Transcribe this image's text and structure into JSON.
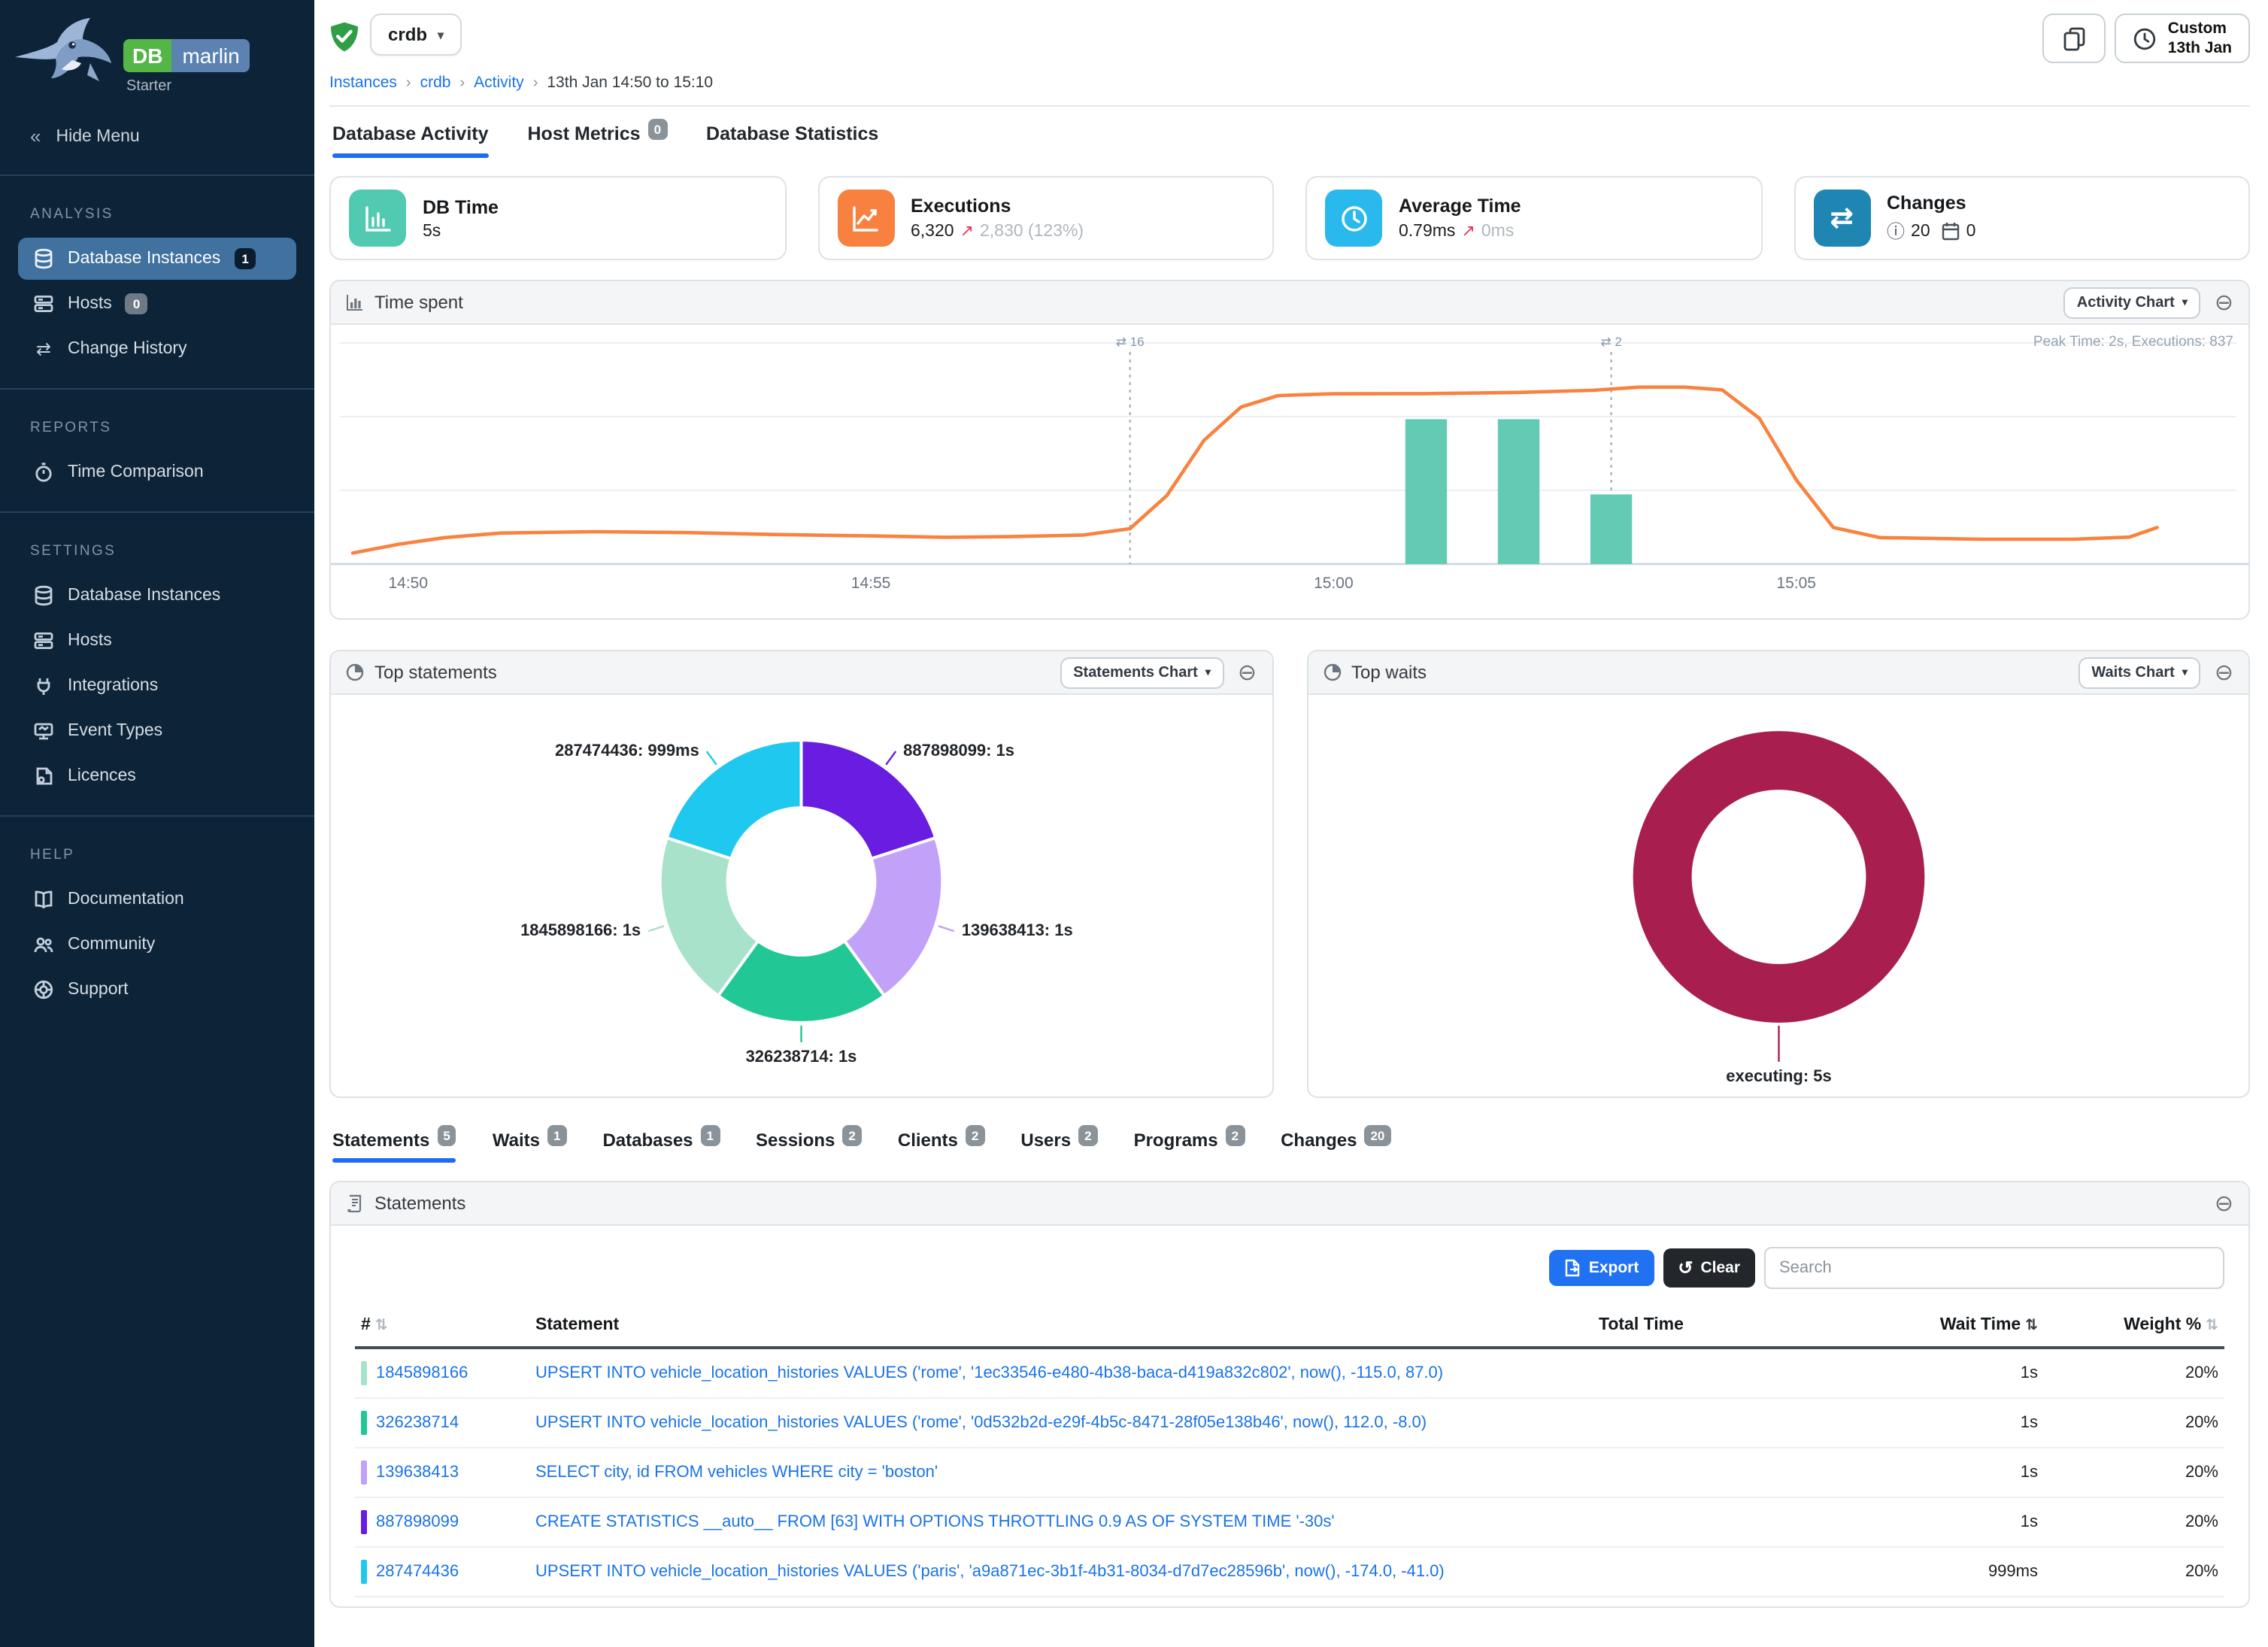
{
  "brand": {
    "db": "DB",
    "marlin": "marlin",
    "edition": "Starter"
  },
  "sidebar": {
    "hide_menu": "Hide Menu",
    "sections": [
      {
        "title": "ANALYSIS",
        "items": [
          {
            "label": "Database Instances",
            "badge": "1"
          },
          {
            "label": "Hosts",
            "badge": "0"
          },
          {
            "label": "Change History"
          }
        ]
      },
      {
        "title": "REPORTS",
        "items": [
          {
            "label": "Time Comparison"
          }
        ]
      },
      {
        "title": "SETTINGS",
        "items": [
          {
            "label": "Database Instances"
          },
          {
            "label": "Hosts"
          },
          {
            "label": "Integrations"
          },
          {
            "label": "Event Types"
          },
          {
            "label": "Licences"
          }
        ]
      },
      {
        "title": "HELP",
        "items": [
          {
            "label": "Documentation"
          },
          {
            "label": "Community"
          },
          {
            "label": "Support"
          }
        ]
      }
    ]
  },
  "topbar": {
    "instance": "crdb",
    "time_button": {
      "line1": "Custom",
      "line2": "13th Jan"
    }
  },
  "breadcrumbs": {
    "sep": "›",
    "items": [
      "Instances",
      "crdb",
      "Activity",
      "13th Jan 14:50 to 15:10"
    ]
  },
  "page_tabs": {
    "t0": {
      "label": "Database Activity"
    },
    "t1": {
      "label": "Host Metrics",
      "badge": "0"
    },
    "t2": {
      "label": "Database Statistics"
    }
  },
  "kpis": {
    "db_time": {
      "title": "DB Time",
      "value": "5s",
      "color": "#52c9b1"
    },
    "executions": {
      "title": "Executions",
      "value": "6,320",
      "arrow": "↗",
      "delta": "2,830 (123%)",
      "color": "#f8813f"
    },
    "avg_time": {
      "title": "Average Time",
      "value": "0.79ms",
      "arrow": "↗",
      "delta": "0ms",
      "color": "#2ab9ec"
    },
    "changes": {
      "title": "Changes",
      "info_icon": "ⓘ",
      "info_count": "20",
      "event_count": "0",
      "color": "#1f86b4",
      "swap_glyph": "⇄"
    }
  },
  "panels": {
    "time_spent": {
      "title": "Time spent",
      "button": "Activity Chart",
      "note": "Peak Time: 2s, Executions: 837"
    },
    "top_statements": {
      "title": "Top statements",
      "button": "Statements Chart"
    },
    "top_waits": {
      "title": "Top waits",
      "button": "Waits Chart"
    },
    "statements": {
      "title": "Statements",
      "export_label": "Export",
      "clear_label": "Clear",
      "clear_icon": "↺",
      "search_placeholder": "Search"
    }
  },
  "detail_tabs": {
    "t0": {
      "label": "Statements",
      "badge": "5"
    },
    "t1": {
      "label": "Waits",
      "badge": "1"
    },
    "t2": {
      "label": "Databases",
      "badge": "1"
    },
    "t3": {
      "label": "Sessions",
      "badge": "2"
    },
    "t4": {
      "label": "Clients",
      "badge": "2"
    },
    "t5": {
      "label": "Users",
      "badge": "2"
    },
    "t6": {
      "label": "Programs",
      "badge": "2"
    },
    "t7": {
      "label": "Changes",
      "badge": "20"
    }
  },
  "table": {
    "col_id": "#",
    "col_statement": "Statement",
    "col_total": "Total Time",
    "col_wait": "Wait Time",
    "col_weight": "Weight %",
    "sort_glyph": "⇅",
    "total_bar_color": "#a81e4f",
    "rows": [
      {
        "id": "1845898166",
        "color": "#a9e2cb",
        "statement": "UPSERT INTO vehicle_location_histories VALUES ('rome', '1ec33546-e480-4b38-baca-d419a832c802', now(), -115.0, 87.0)",
        "wait": "1s",
        "weight": "20%"
      },
      {
        "id": "326238714",
        "color": "#21c795",
        "statement": "UPSERT INTO vehicle_location_histories VALUES ('rome', '0d532b2d-e29f-4b5c-8471-28f05e138b46', now(), 112.0, -8.0)",
        "wait": "1s",
        "weight": "20%"
      },
      {
        "id": "139638413",
        "color": "#c2a2f8",
        "statement": "SELECT city, id FROM vehicles WHERE city = 'boston'",
        "wait": "1s",
        "weight": "20%"
      },
      {
        "id": "887898099",
        "color": "#681de0",
        "statement": "CREATE STATISTICS __auto__ FROM [63] WITH OPTIONS THROTTLING 0.9 AS OF SYSTEM TIME '-30s'",
        "wait": "1s",
        "weight": "20%"
      },
      {
        "id": "287474436",
        "color": "#1fc8ee",
        "statement": "UPSERT INTO vehicle_location_histories VALUES ('paris', 'a9a871ec-3b1f-4b31-8034-d7d7ec28596b', now(), -174.0, -41.0)",
        "wait": "999ms",
        "weight": "20%"
      }
    ]
  },
  "chart_data": [
    {
      "id": "time_spent",
      "type": "line",
      "title": "Time spent",
      "annotation": "Peak Time: 2s, Executions: 837",
      "x_axis": {
        "note": "t = minutes after 14:49",
        "ticks": [
          "14:50",
          "14:55",
          "15:00",
          "15:05"
        ],
        "tick_t": [
          1,
          6,
          11,
          16
        ],
        "t_range": [
          0.4,
          21.1
        ]
      },
      "y_axis": {
        "unit": "fraction of peak (2s)",
        "gridlines": [
          1,
          0.6667,
          0.3333
        ],
        "grid": true
      },
      "line": {
        "name": "DB Time",
        "color": "#f8823e",
        "points": [
          [
            0.4,
            0.05
          ],
          [
            0.9,
            0.09
          ],
          [
            1.4,
            0.12
          ],
          [
            2,
            0.14
          ],
          [
            3,
            0.146
          ],
          [
            4,
            0.142
          ],
          [
            5,
            0.133
          ],
          [
            6,
            0.127
          ],
          [
            6.8,
            0.121
          ],
          [
            7.5,
            0.124
          ],
          [
            8.3,
            0.131
          ],
          [
            8.8,
            0.16
          ],
          [
            9.2,
            0.31
          ],
          [
            9.6,
            0.56
          ],
          [
            10,
            0.71
          ],
          [
            10.4,
            0.762
          ],
          [
            11,
            0.77
          ],
          [
            12,
            0.771
          ],
          [
            13,
            0.776
          ],
          [
            13.8,
            0.786
          ],
          [
            14.3,
            0.8
          ],
          [
            14.8,
            0.8
          ],
          [
            15.2,
            0.788
          ],
          [
            15.6,
            0.66
          ],
          [
            16,
            0.38
          ],
          [
            16.4,
            0.165
          ],
          [
            16.9,
            0.12
          ],
          [
            18,
            0.112
          ],
          [
            19,
            0.112
          ],
          [
            19.6,
            0.122
          ],
          [
            19.9,
            0.165
          ]
        ]
      },
      "bars": {
        "name": "Executions",
        "color": "#63cbb4",
        "width_t": 0.45,
        "items": [
          [
            12,
            0.655
          ],
          [
            13,
            0.655
          ],
          [
            14,
            0.315
          ]
        ]
      },
      "change_markers": [
        {
          "t": 8.8,
          "count": "16"
        },
        {
          "t": 14,
          "count": "2"
        }
      ],
      "marker_glyph": "⇄"
    },
    {
      "id": "top_statements",
      "type": "pie",
      "donut": true,
      "slices": [
        {
          "label": "887898099",
          "value": "1s",
          "pct": 20,
          "color": "#681de0"
        },
        {
          "label": "139638413",
          "value": "1s",
          "pct": 20,
          "color": "#c2a2f8"
        },
        {
          "label": "326238714",
          "value": "1s",
          "pct": 20,
          "color": "#21c795"
        },
        {
          "label": "1845898166",
          "value": "1s",
          "pct": 20,
          "color": "#a9e2cb"
        },
        {
          "label": "287474436",
          "value": "999ms",
          "pct": 20,
          "color": "#1fc8ee"
        }
      ]
    },
    {
      "id": "top_waits",
      "type": "pie",
      "donut": true,
      "slices": [
        {
          "label": "executing",
          "value": "5s",
          "pct": 100,
          "color": "#a81e4f"
        }
      ]
    }
  ]
}
